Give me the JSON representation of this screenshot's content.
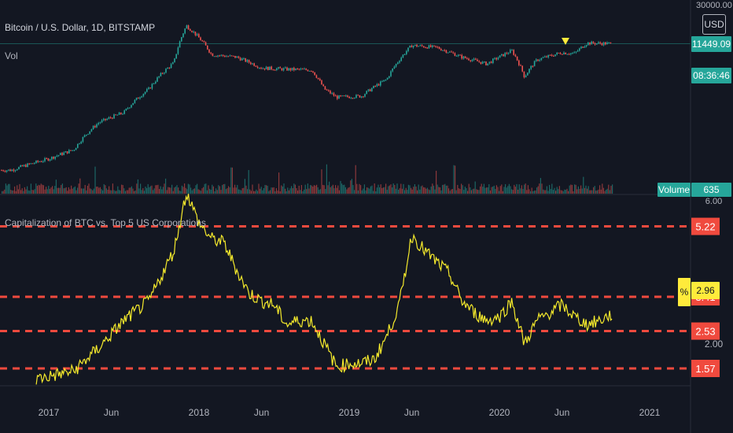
{
  "header": {
    "symbol": "Bitcoin / U.S. Dollar, 1D, BITSTAMP",
    "vol_label": "Vol",
    "indicator_title": "Capitalization of BTC vs. Top 5 US Corporations"
  },
  "price_scale": {
    "top_value": "30000.00",
    "currency_button": "USD",
    "last_price": "11449.09",
    "countdown": "08:36:46",
    "volume_label": "Volume",
    "volume_value": "635"
  },
  "indicator_scale": {
    "top_value": "6.00",
    "mid_value": "2.00",
    "unit_badge": "%",
    "current": "2.96"
  },
  "colors": {
    "background": "#131722",
    "price_up": "#26a69a",
    "price_down": "#ef5350",
    "ratio_line": "#f5ea2c",
    "level_line": "#f04a3e",
    "axis_text": "#b2b5be",
    "current_badge": "#ffeb3b"
  },
  "chart_data": [
    {
      "type": "line",
      "title": "Bitcoin / U.S. Dollar, 1D, BITSTAMP",
      "x": [
        "2016-10",
        "2017-01",
        "2017-03",
        "2017-05",
        "2017-07",
        "2017-09",
        "2017-11",
        "2017-12",
        "2018-01",
        "2018-02",
        "2018-04",
        "2018-06",
        "2018-08",
        "2018-10",
        "2018-11",
        "2018-12",
        "2019-02",
        "2019-04",
        "2019-05",
        "2019-06",
        "2019-08",
        "2019-10",
        "2019-12",
        "2020-02",
        "2020-03",
        "2020-04",
        "2020-06",
        "2020-07",
        "2020-08",
        "2020-10"
      ],
      "values": [
        700,
        900,
        1100,
        2000,
        2500,
        4200,
        7500,
        17000,
        13000,
        9000,
        8500,
        6700,
        6500,
        6400,
        4200,
        3500,
        3600,
        5200,
        8000,
        11000,
        10500,
        8500,
        7300,
        9800,
        5500,
        8000,
        9400,
        9200,
        11600,
        11449.09
      ],
      "ylim": [
        0,
        30000
      ],
      "scale": "log"
    },
    {
      "type": "bar",
      "title": "Vol",
      "series": [
        {
          "name": "Volume",
          "values": [
            635
          ]
        }
      ]
    },
    {
      "type": "line",
      "title": "Capitalization of BTC vs. Top 5 US Corporations",
      "x": [
        "2016-12",
        "2017-03",
        "2017-05",
        "2017-07",
        "2017-09",
        "2017-11",
        "2017-12",
        "2018-01",
        "2018-02",
        "2018-03",
        "2018-04",
        "2018-05",
        "2018-06",
        "2018-07",
        "2018-08",
        "2018-09",
        "2018-10",
        "2018-11",
        "2018-12",
        "2019-01",
        "2019-02",
        "2019-03",
        "2019-04",
        "2019-05",
        "2019-06",
        "2019-07",
        "2019-08",
        "2019-09",
        "2019-10",
        "2019-11",
        "2019-12",
        "2020-01",
        "2020-02",
        "2020-03",
        "2020-04",
        "2020-05",
        "2020-06",
        "2020-07",
        "2020-08",
        "2020-09",
        "2020-10"
      ],
      "values": [
        1.3,
        1.5,
        2.1,
        2.8,
        3.3,
        4.6,
        6.1,
        5.3,
        4.9,
        4.8,
        4.1,
        3.5,
        3.3,
        3.2,
        2.7,
        2.8,
        2.8,
        2.2,
        1.6,
        1.7,
        1.7,
        1.8,
        2.4,
        3.2,
        5.0,
        4.6,
        4.3,
        4.0,
        3.3,
        3.0,
        2.8,
        2.9,
        3.3,
        2.2,
        2.8,
        3.0,
        3.2,
        2.9,
        2.7,
        2.8,
        2.96
      ],
      "ylim": [
        1.3,
        6.0
      ],
      "levels": [
        5.22,
        3.41,
        2.53,
        1.57
      ]
    }
  ],
  "time_axis": {
    "labels": [
      "2017",
      "Jun",
      "2018",
      "Jun",
      "2019",
      "Jun",
      "2020",
      "Jun",
      "2021"
    ]
  }
}
